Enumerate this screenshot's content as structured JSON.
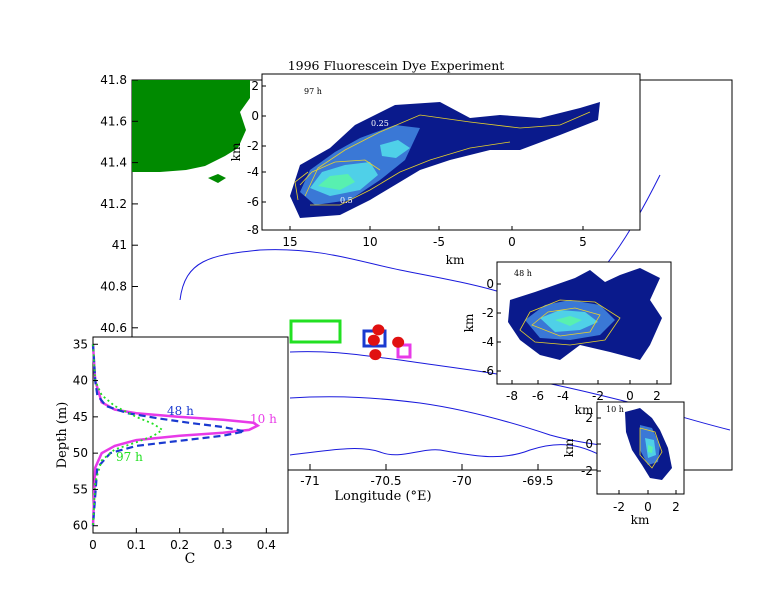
{
  "colors": {
    "land": "#008a00",
    "contour": "#1a1adc",
    "dye_deep": "#0a1a8c",
    "dye_mid": "#3a78d6",
    "dye_light": "#4fd0e8",
    "dye_core": "#58f0b0",
    "contour_line": "#e8d22a",
    "box_green": "#22e022",
    "box_blue": "#1a3ad0",
    "box_magenta": "#e83ae8",
    "mooring": "#e01010",
    "profile_10h": "#e83ae8",
    "profile_48h": "#1a3ad0",
    "profile_97h": "#22e022"
  },
  "chart_data": [
    {
      "type": "map",
      "xlabel": "Longitude (°E)",
      "xticks": [
        "-71",
        "-70.5",
        "-70",
        "-69.5"
      ],
      "yticks": [
        "41.8",
        "41.6",
        "41.4",
        "41.2",
        "41",
        "40.8",
        "40.6"
      ],
      "markers": [
        {
          "name": "mooring",
          "lon": -70.55,
          "lat": 40.59
        },
        {
          "name": "mooring",
          "lon": -70.58,
          "lat": 40.54
        },
        {
          "name": "mooring",
          "lon": -70.42,
          "lat": 40.53
        },
        {
          "name": "mooring",
          "lon": -70.57,
          "lat": 40.47
        }
      ]
    },
    {
      "type": "heatmap",
      "title": "1996 Fluorescein Dye Experiment",
      "panel_label": "97 h",
      "xlabel": "km",
      "ylabel": "km",
      "xticks": [
        "15",
        "10",
        "-5",
        "0",
        "5"
      ],
      "yticks": [
        "2",
        "0",
        "-2",
        "-4",
        "-6",
        "-8"
      ],
      "annotations": [
        "0.25",
        "0.5"
      ]
    },
    {
      "type": "heatmap",
      "panel_label": "48 h",
      "xlabel": "km",
      "ylabel": "km",
      "xticks": [
        "-8",
        "-6",
        "-4",
        "-2",
        "0",
        "2"
      ],
      "yticks": [
        "0",
        "-2",
        "-4",
        "-6"
      ]
    },
    {
      "type": "heatmap",
      "panel_label": "10 h",
      "xlabel": "km",
      "ylabel": "km",
      "xticks": [
        "-2",
        "0",
        "2"
      ],
      "yticks": [
        "2",
        "0",
        "-2"
      ]
    },
    {
      "type": "line",
      "xlabel": "C",
      "ylabel": "Depth (m)",
      "xlim": [
        0,
        0.45
      ],
      "ylim": [
        34,
        61
      ],
      "xticks": [
        "0",
        "0.1",
        "0.2",
        "0.3",
        "0.4"
      ],
      "yticks": [
        "35",
        "40",
        "45",
        "50",
        "55",
        "60"
      ],
      "series": [
        {
          "name": "10 h",
          "style": "solid",
          "x": [
            0,
            0.005,
            0.02,
            0.05,
            0.1,
            0.2,
            0.3,
            0.37,
            0.38,
            0.36,
            0.3,
            0.2,
            0.1,
            0.05,
            0.02,
            0.005,
            0
          ],
          "y": [
            35,
            40,
            43,
            44,
            44.5,
            45,
            45.4,
            45.8,
            46.2,
            46.8,
            47.2,
            47.6,
            48.2,
            49,
            50,
            52,
            60
          ]
        },
        {
          "name": "48 h",
          "style": "dashed",
          "x": [
            0,
            0.005,
            0.01,
            0.03,
            0.08,
            0.15,
            0.22,
            0.3,
            0.35,
            0.3,
            0.2,
            0.1,
            0.04,
            0.01,
            0
          ],
          "y": [
            35,
            40,
            42,
            43.5,
            44.5,
            45.2,
            45.8,
            46.4,
            47,
            47.6,
            48.3,
            49,
            50,
            52,
            60
          ]
        },
        {
          "name": "97 h",
          "style": "dotted",
          "x": [
            0,
            0.005,
            0.02,
            0.05,
            0.1,
            0.14,
            0.16,
            0.14,
            0.1,
            0.05,
            0.02,
            0.005,
            0
          ],
          "y": [
            35,
            40,
            42,
            43.5,
            45,
            46,
            46.8,
            47.6,
            48.5,
            49.5,
            51,
            54,
            60
          ]
        }
      ]
    }
  ]
}
